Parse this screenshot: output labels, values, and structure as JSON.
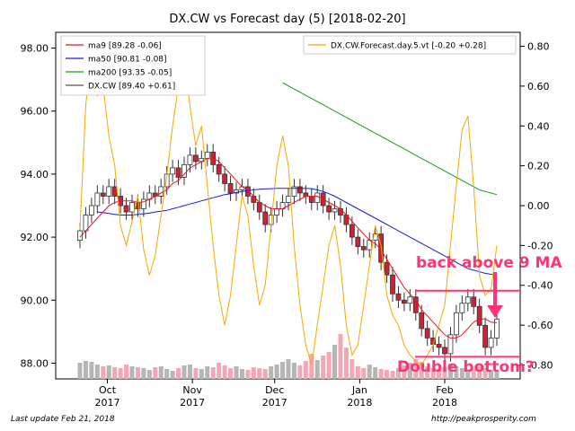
{
  "chart_data": {
    "type": "candlestick",
    "title": "DX.CW vs Forecast day (5)  [2018-02-20]",
    "left_axis": {
      "ylim": [
        87.5,
        98.5
      ],
      "ticks": [
        "88.00",
        "90.00",
        "92.00",
        "94.00",
        "96.00",
        "98.00"
      ]
    },
    "right_axis": {
      "ylim": [
        -0.87,
        0.87
      ],
      "ticks": [
        "-0.80",
        "-0.60",
        "-0.40",
        "-0.20",
        "0.00",
        "0.20",
        "0.40",
        "0.60",
        "0.80"
      ]
    },
    "x_axis": {
      "ticks": [
        {
          "month": "Oct",
          "year": "2017",
          "date": "2017-10-01"
        },
        {
          "month": "Nov",
          "year": "2017",
          "date": "2017-11-01"
        },
        {
          "month": "Dec",
          "year": "2017",
          "date": "2017-12-01"
        },
        {
          "month": "Jan",
          "year": "2018",
          "date": "2018-01-01"
        },
        {
          "month": "Feb",
          "year": "2018",
          "date": "2018-02-01"
        }
      ]
    },
    "legend_left": [
      {
        "label": "ma9 [89.28 -0.06]",
        "color": "#e8181e"
      },
      {
        "label": "ma50 [90.81 -0.08]",
        "color": "#1a1adc"
      },
      {
        "label": "ma200 [93.35 -0.05]",
        "color": "#1a9a1a"
      },
      {
        "label": "DX.CW [89.40 +0.61]",
        "color": "#555555"
      }
    ],
    "legend_right": [
      {
        "label": "DX.CW.Forecast.day.5.vt [-0.20 +0.28]",
        "color": "#f5a800"
      }
    ],
    "close": [
      92.2,
      92.7,
      93.0,
      93.4,
      93.3,
      93.6,
      93.3,
      93.0,
      92.8,
      93.1,
      92.9,
      93.2,
      93.4,
      93.3,
      93.6,
      94.0,
      94.2,
      93.9,
      94.3,
      94.6,
      94.4,
      94.5,
      94.7,
      94.3,
      94.0,
      93.7,
      93.4,
      93.5,
      93.6,
      93.3,
      93.1,
      92.8,
      92.4,
      92.7,
      92.9,
      93.1,
      93.3,
      93.6,
      93.4,
      93.3,
      93.1,
      93.4,
      93.0,
      92.8,
      92.9,
      92.7,
      92.4,
      92.0,
      91.7,
      91.6,
      91.9,
      92.1,
      91.2,
      90.8,
      90.2,
      90.0,
      89.9,
      90.1,
      89.6,
      89.1,
      88.8,
      88.6,
      88.5,
      88.3,
      88.9,
      89.6,
      89.9,
      90.1,
      89.8,
      89.2,
      88.5,
      88.8,
      89.4
    ],
    "ma9": [
      92.0,
      92.2,
      92.4,
      92.6,
      92.8,
      93.0,
      93.1,
      93.15,
      93.15,
      93.15,
      93.1,
      93.12,
      93.2,
      93.3,
      93.4,
      93.5,
      93.7,
      93.8,
      94.0,
      94.2,
      94.3,
      94.4,
      94.5,
      94.5,
      94.4,
      94.2,
      94.0,
      93.8,
      93.6,
      93.5,
      93.3,
      93.1,
      93.0,
      92.9,
      92.9,
      92.9,
      93.0,
      93.1,
      93.2,
      93.3,
      93.3,
      93.3,
      93.2,
      93.1,
      93.0,
      92.9,
      92.7,
      92.5,
      92.3,
      92.1,
      91.9,
      91.8,
      91.6,
      91.3,
      91.0,
      90.7,
      90.4,
      90.2,
      90.0,
      89.7,
      89.5,
      89.3,
      89.1,
      88.9,
      88.8,
      88.8,
      88.9,
      89.1,
      89.3,
      89.4,
      89.4,
      89.3,
      89.28
    ],
    "ma50": [
      92.8,
      92.78,
      92.75,
      92.72,
      92.7,
      92.7,
      92.7,
      92.72,
      92.74,
      92.76,
      92.8,
      92.82,
      92.85,
      92.9,
      92.95,
      93.0,
      93.05,
      93.1,
      93.15,
      93.2,
      93.25,
      93.3,
      93.35,
      93.38,
      93.42,
      93.45,
      93.48,
      93.5,
      93.52,
      93.53,
      93.54,
      93.55,
      93.55,
      93.55,
      93.55,
      93.55,
      93.55,
      93.54,
      93.5,
      93.45,
      93.38,
      93.3,
      93.2,
      93.1,
      93.0,
      92.9,
      92.8,
      92.7,
      92.6,
      92.5,
      92.4,
      92.3,
      92.2,
      92.1,
      92.0,
      91.9,
      91.8,
      91.7,
      91.6,
      91.5,
      91.4,
      91.3,
      91.2,
      91.1,
      91.0,
      90.95,
      90.9,
      90.85,
      90.82,
      90.81
    ],
    "ma50_start": 3,
    "ma200": [
      96.9,
      96.8,
      96.7,
      96.6,
      96.5,
      96.4,
      96.3,
      96.2,
      96.1,
      96.0,
      95.9,
      95.8,
      95.7,
      95.6,
      95.5,
      95.4,
      95.3,
      95.2,
      95.1,
      95.0,
      94.9,
      94.8,
      94.7,
      94.6,
      94.5,
      94.4,
      94.3,
      94.2,
      94.1,
      94.0,
      93.9,
      93.8,
      93.7,
      93.6,
      93.5,
      93.45,
      93.4,
      93.35
    ],
    "ma200_start": 35,
    "forecast": [
      -0.12,
      0.5,
      0.78,
      0.55,
      0.6,
      0.35,
      0.2,
      -0.1,
      -0.2,
      -0.08,
      0.05,
      -0.22,
      -0.35,
      -0.25,
      -0.05,
      0.15,
      0.4,
      0.6,
      0.75,
      0.5,
      0.3,
      0.4,
      0.1,
      -0.2,
      -0.45,
      -0.6,
      -0.45,
      -0.2,
      0.05,
      -0.05,
      -0.3,
      -0.5,
      -0.4,
      -0.1,
      0.2,
      0.35,
      0.2,
      -0.2,
      -0.5,
      -0.7,
      -0.8,
      -0.6,
      -0.4,
      -0.2,
      -0.1,
      -0.3,
      -0.6,
      -0.75,
      -0.7,
      -0.5,
      -0.3,
      -0.1,
      -0.2,
      -0.45,
      -0.55,
      -0.6,
      -0.7,
      -0.75,
      -0.78,
      -0.8,
      -0.75,
      -0.7,
      -0.6,
      -0.5,
      -0.2,
      0.1,
      0.38,
      0.45,
      0.1,
      -0.35,
      -0.45,
      -0.42,
      -0.2
    ],
    "annotations": [
      {
        "text": "back above 9 MA",
        "color": "#ff3377",
        "line_value": 90.3
      },
      {
        "text": "Double bottom?",
        "color": "#ff3377",
        "line_value": 88.2
      }
    ],
    "grid": false
  },
  "footer": {
    "left": "Last update Feb 21, 2018",
    "right": "http://peakprosperity.com"
  }
}
